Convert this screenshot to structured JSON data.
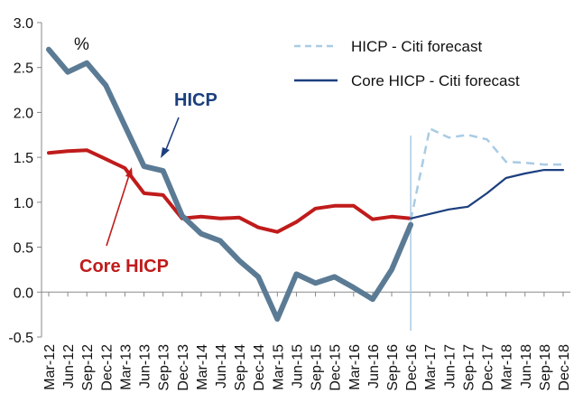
{
  "chart_data": {
    "type": "line",
    "unit_label": "%",
    "ylim": [
      -0.5,
      3.0
    ],
    "yticks": [
      -0.5,
      0.0,
      0.5,
      1.0,
      1.5,
      2.0,
      2.5,
      3.0
    ],
    "ytick_labels": [
      "-0.5",
      "0.0",
      "0.5",
      "1.0",
      "1.5",
      "2.0",
      "2.5",
      "3.0"
    ],
    "categories": [
      "Mar-12",
      "Jun-12",
      "Sep-12",
      "Dec-12",
      "Mar-13",
      "Jun-13",
      "Sep-13",
      "Dec-13",
      "Mar-14",
      "Jun-14",
      "Sep-14",
      "Dec-14",
      "Mar-15",
      "Jun-15",
      "Sep-15",
      "Dec-15",
      "Mar-16",
      "Jun-16",
      "Sep-16",
      "Dec-16",
      "Mar-17",
      "Jun-17",
      "Sep-17",
      "Dec-17",
      "Mar-18",
      "Jun-18",
      "Sep-18",
      "Dec-18"
    ],
    "forecast_start_index": 19,
    "series": [
      {
        "name": "HICP",
        "color": "#5b7b95",
        "values": [
          2.7,
          2.45,
          2.55,
          2.3,
          1.85,
          1.4,
          1.35,
          0.85,
          0.65,
          0.57,
          0.35,
          0.17,
          -0.3,
          0.2,
          0.1,
          0.17,
          0.05,
          -0.08,
          0.25,
          0.75,
          null,
          null,
          null,
          null,
          null,
          null,
          null,
          null
        ]
      },
      {
        "name": "Core HICP",
        "color": "#c01b1b",
        "values": [
          1.55,
          1.57,
          1.58,
          1.48,
          1.38,
          1.1,
          1.08,
          0.82,
          0.84,
          0.82,
          0.83,
          0.72,
          0.67,
          0.78,
          0.93,
          0.96,
          0.96,
          0.81,
          0.84,
          0.82,
          null,
          null,
          null,
          null,
          null,
          null,
          null,
          null
        ]
      },
      {
        "name": "HICP - Citi forecast",
        "color": "#a9cbe4",
        "dashed": true,
        "values": [
          null,
          null,
          null,
          null,
          null,
          null,
          null,
          null,
          null,
          null,
          null,
          null,
          null,
          null,
          null,
          null,
          null,
          null,
          null,
          0.8,
          1.82,
          1.72,
          1.75,
          1.7,
          1.45,
          1.44,
          1.42,
          1.42
        ]
      },
      {
        "name": "Core HICP - Citi forecast",
        "color": "#1c3f7e",
        "values": [
          null,
          null,
          null,
          null,
          null,
          null,
          null,
          null,
          null,
          null,
          null,
          null,
          null,
          null,
          null,
          null,
          null,
          null,
          null,
          0.82,
          0.87,
          0.92,
          0.95,
          1.1,
          1.27,
          1.32,
          1.36,
          1.36
        ]
      }
    ],
    "legend": {
      "placement": "top-right",
      "items": [
        "HICP - Citi forecast",
        "Core HICP - Citi forecast"
      ]
    },
    "annotations": {
      "hicp": "HICP",
      "core_hicp": "Core HICP"
    }
  }
}
